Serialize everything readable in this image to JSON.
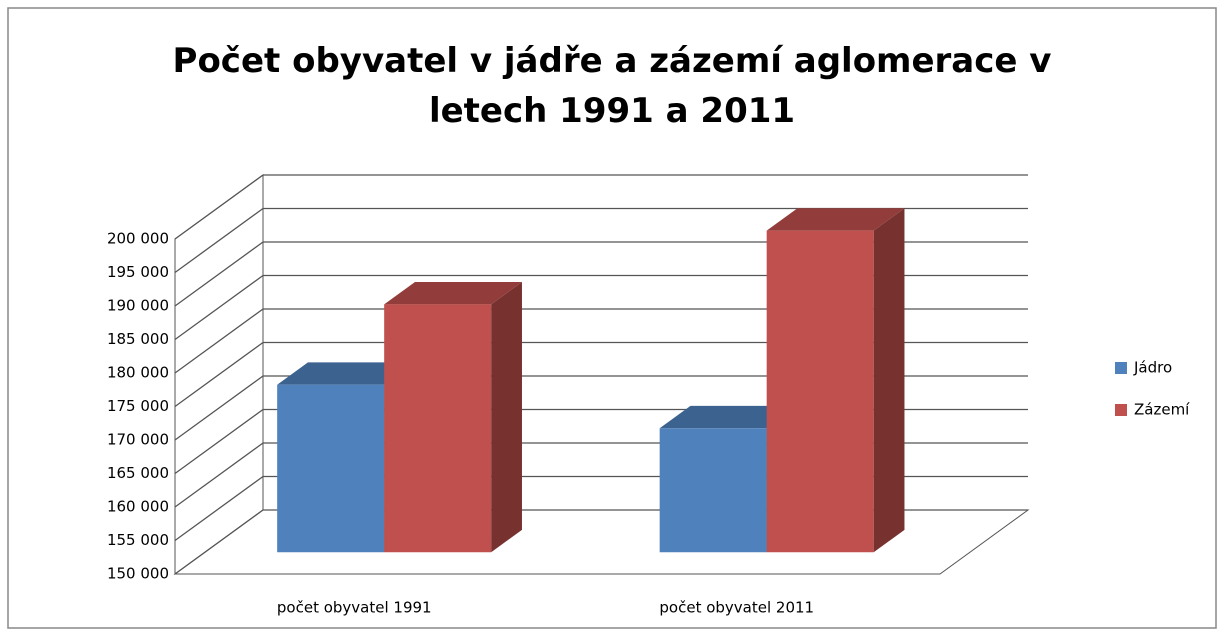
{
  "chart_data": {
    "type": "bar3d",
    "title": "Počet obyvatel v jádře a zázemí aglomerace v letech 1991 a 2011",
    "categories": [
      "počet obyvatel 1991",
      "počet obyvatel 2011"
    ],
    "series": [
      {
        "name": "Jádro",
        "color": "#4f81bd",
        "values": [
          175000,
          168500
        ]
      },
      {
        "name": "Zázemí",
        "color": "#c0504d",
        "values": [
          187000,
          198000
        ]
      }
    ],
    "ylim": [
      150000,
      200000
    ],
    "yticks": [
      {
        "value": 150000,
        "label": "150 000"
      },
      {
        "value": 155000,
        "label": "155 000"
      },
      {
        "value": 160000,
        "label": "160 000"
      },
      {
        "value": 165000,
        "label": "165 000"
      },
      {
        "value": 170000,
        "label": "170 000"
      },
      {
        "value": 175000,
        "label": "175 000"
      },
      {
        "value": 180000,
        "label": "180 000"
      },
      {
        "value": 185000,
        "label": "185 000"
      },
      {
        "value": 190000,
        "label": "190 000"
      },
      {
        "value": 195000,
        "label": "195 000"
      },
      {
        "value": 200000,
        "label": "200 000"
      }
    ],
    "grid": true,
    "legend": "right"
  }
}
